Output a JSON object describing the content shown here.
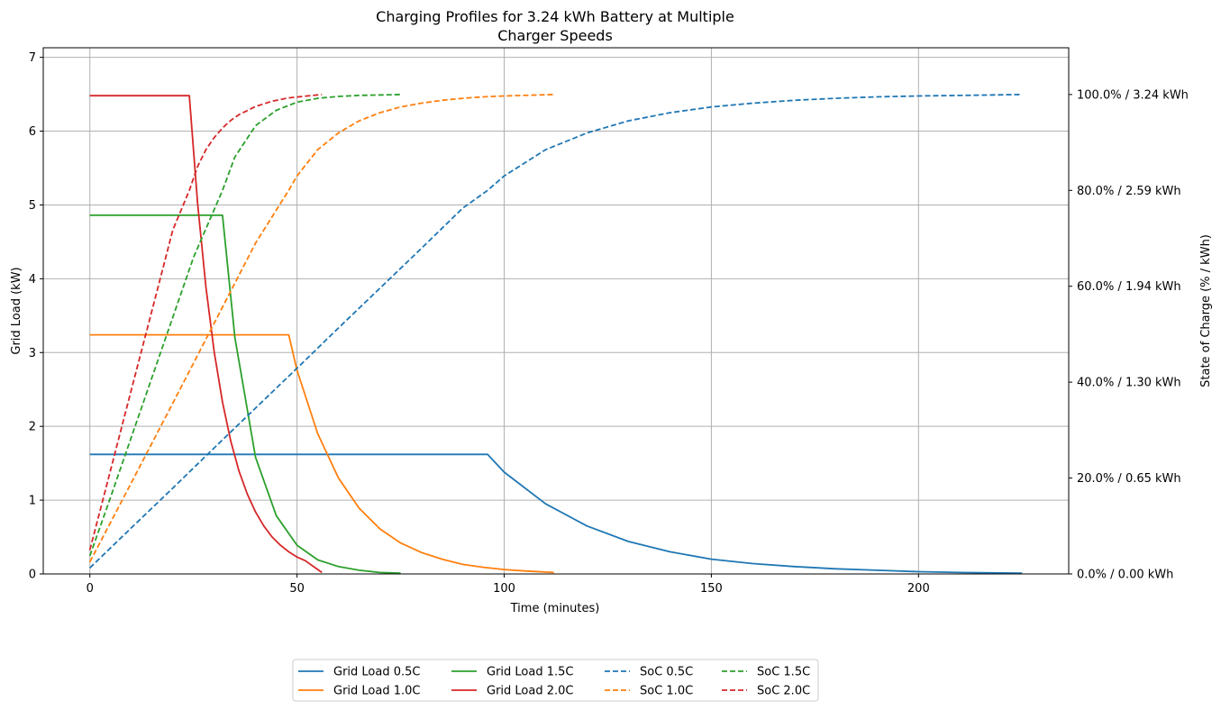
{
  "chart_data": {
    "type": "line",
    "title": "Charging Profiles for 3.24 kWh Battery at Multiple Charger Speeds",
    "title_lines": [
      "Charging Profiles for 3.24 kWh Battery at Multiple",
      "Charger Speeds"
    ],
    "xlabel": "Time (minutes)",
    "ylabel": "Grid Load (kW)",
    "y2label": "State of Charge (% / kWh)",
    "xlim": [
      -11.25,
      236.25
    ],
    "ylim": [
      0,
      7.13
    ],
    "y2lim": [
      0,
      1.0975
    ],
    "grid": true,
    "legend_position": "bottom-center",
    "x_ticks": [
      0,
      50,
      100,
      150,
      200
    ],
    "x_tick_labels": [
      "0",
      "50",
      "100",
      "150",
      "200"
    ],
    "y_ticks": [
      0,
      1,
      2,
      3,
      4,
      5,
      6,
      7
    ],
    "y_tick_labels": [
      "0",
      "1",
      "2",
      "3",
      "4",
      "5",
      "6",
      "7"
    ],
    "y2_ticks": [
      0,
      0.2,
      0.4,
      0.6,
      0.8,
      1.0
    ],
    "y2_tick_labels": [
      "0.0% / 0.00 kWh",
      "20.0% / 0.65 kWh",
      "40.0% / 1.30 kWh",
      "60.0% / 1.94 kWh",
      "80.0% / 2.59 kWh",
      "100.0% / 3.24 kWh"
    ],
    "series": [
      {
        "name": "Grid Load 0.5C",
        "axis": "left",
        "style": "solid",
        "color": "#1f77b4",
        "x": [
          0,
          96,
          100,
          110,
          120,
          130,
          140,
          150,
          160,
          170,
          180,
          190,
          200,
          210,
          225
        ],
        "values": [
          1.62,
          1.62,
          1.38,
          0.95,
          0.65,
          0.44,
          0.3,
          0.2,
          0.14,
          0.1,
          0.07,
          0.05,
          0.03,
          0.02,
          0.01
        ]
      },
      {
        "name": "Grid Load 1.0C",
        "axis": "left",
        "style": "solid",
        "color": "#ff7f0e",
        "x": [
          0,
          48,
          50,
          55,
          60,
          65,
          70,
          75,
          80,
          85,
          90,
          95,
          100,
          105,
          112
        ],
        "values": [
          3.24,
          3.24,
          2.76,
          1.9,
          1.3,
          0.89,
          0.61,
          0.42,
          0.29,
          0.2,
          0.13,
          0.09,
          0.06,
          0.04,
          0.02
        ]
      },
      {
        "name": "Grid Load 1.5C",
        "axis": "left",
        "style": "solid",
        "color": "#2ca02c",
        "x": [
          0,
          32,
          35,
          40,
          45,
          50,
          55,
          60,
          65,
          70,
          75
        ],
        "values": [
          4.86,
          4.86,
          3.2,
          1.58,
          0.79,
          0.39,
          0.19,
          0.1,
          0.05,
          0.02,
          0.01
        ]
      },
      {
        "name": "Grid Load 2.0C",
        "axis": "left",
        "style": "solid",
        "color": "#d62728",
        "x": [
          0,
          24,
          26,
          28,
          30,
          32,
          34,
          36,
          38,
          40,
          42,
          44,
          46,
          48,
          50,
          52,
          56
        ],
        "values": [
          6.48,
          6.48,
          5.02,
          3.89,
          3.01,
          2.33,
          1.8,
          1.39,
          1.08,
          0.84,
          0.65,
          0.5,
          0.39,
          0.3,
          0.23,
          0.18,
          0.02
        ]
      },
      {
        "name": "SoC 0.5C",
        "axis": "right",
        "style": "dashed",
        "color": "#1f77b4",
        "x": [
          0,
          10,
          20,
          30,
          40,
          50,
          60,
          70,
          80,
          90,
          96,
          100,
          110,
          120,
          130,
          140,
          150,
          160,
          170,
          180,
          190,
          200,
          210,
          225
        ],
        "values": [
          0.0125,
          0.096,
          0.179,
          0.263,
          0.346,
          0.429,
          0.513,
          0.596,
          0.679,
          0.763,
          0.8,
          0.83,
          0.885,
          0.92,
          0.945,
          0.962,
          0.974,
          0.982,
          0.988,
          0.992,
          0.995,
          0.997,
          0.998,
          1.0
        ]
      },
      {
        "name": "SoC 1.0C",
        "axis": "right",
        "style": "dashed",
        "color": "#ff7f0e",
        "x": [
          0,
          10,
          20,
          30,
          40,
          48,
          50,
          55,
          60,
          65,
          70,
          75,
          80,
          85,
          90,
          95,
          100,
          112
        ],
        "values": [
          0.025,
          0.19,
          0.356,
          0.523,
          0.69,
          0.8,
          0.83,
          0.885,
          0.92,
          0.945,
          0.962,
          0.974,
          0.982,
          0.988,
          0.992,
          0.995,
          0.997,
          1.0
        ]
      },
      {
        "name": "SoC 1.5C",
        "axis": "right",
        "style": "dashed",
        "color": "#2ca02c",
        "x": [
          0,
          5,
          10,
          15,
          20,
          25,
          32,
          35,
          40,
          45,
          50,
          55,
          60,
          65,
          75
        ],
        "values": [
          0.0375,
          0.16,
          0.285,
          0.41,
          0.535,
          0.66,
          0.8,
          0.87,
          0.935,
          0.967,
          0.984,
          0.992,
          0.996,
          0.998,
          1.0
        ]
      },
      {
        "name": "SoC 2.0C",
        "axis": "right",
        "style": "dashed",
        "color": "#d62728",
        "x": [
          0,
          4,
          8,
          12,
          16,
          20,
          24,
          26,
          28,
          30,
          32,
          34,
          36,
          40,
          44,
          48,
          56
        ],
        "values": [
          0.05,
          0.183,
          0.317,
          0.45,
          0.583,
          0.717,
          0.8,
          0.85,
          0.885,
          0.91,
          0.93,
          0.946,
          0.958,
          0.975,
          0.986,
          0.993,
          1.0
        ]
      }
    ]
  }
}
